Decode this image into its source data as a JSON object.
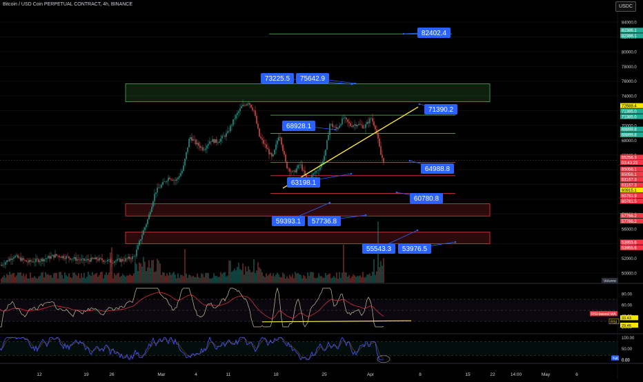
{
  "header": {
    "title": "Bitcoin / USD Coin PERPETUAL CONTRACT, 4h, BINANCE",
    "currency": "USDC"
  },
  "chart_data": {
    "type": "candlestick",
    "timeframe": "4h",
    "x_ticks": [
      "12",
      "19",
      "26",
      "Mar",
      "4",
      "11",
      "18",
      "25",
      "Apr",
      "8",
      "15",
      "22",
      "14:00",
      "May",
      "6"
    ],
    "y_ticks": [
      50000,
      52000,
      54000,
      56000,
      58000,
      60000,
      62000,
      64000,
      66000,
      68000,
      70000,
      72000,
      74000,
      76000,
      78000,
      80000,
      82000,
      84000
    ],
    "ylim": [
      48700,
      85500
    ],
    "price_callouts": [
      {
        "label": "82402.4",
        "price": 82402.4
      },
      {
        "label": "73225.5",
        "price": 75200
      },
      {
        "label": "75642.9",
        "price": 75642.9
      },
      {
        "label": "71390.2",
        "price": 71390.2
      },
      {
        "label": "68928.1",
        "price": 68928.1
      },
      {
        "label": "64988.8",
        "price": 64988.8
      },
      {
        "label": "63198.1",
        "price": 63198.1
      },
      {
        "label": "60780.8",
        "price": 60780.8
      },
      {
        "label": "59393.1",
        "price": 59393.1
      },
      {
        "label": "57736.8",
        "price": 57736.8
      },
      {
        "label": "55543.3",
        "price": 55543.3
      },
      {
        "label": "53976.5",
        "price": 53976.5
      }
    ],
    "horizontal_levels": [
      {
        "price": 82402.4,
        "color": "#4caf50"
      },
      {
        "price": 71390.2,
        "color": "#4caf50"
      },
      {
        "price": 68928.1,
        "color": "#4caf50"
      },
      {
        "price": 64988.8,
        "color": "#f23645"
      },
      {
        "price": 63198.1,
        "color": "#f23645"
      },
      {
        "price": 60780.8,
        "color": "#f23645"
      }
    ],
    "zones": [
      {
        "top": 75642.9,
        "bottom": 73225.5,
        "color": "#4caf50"
      },
      {
        "top": 59393.1,
        "bottom": 57736.8,
        "color": "#f23645"
      },
      {
        "top": 55543.3,
        "bottom": 53976.5,
        "color": "#f23645"
      }
    ],
    "axis_tags": [
      {
        "label": "82386.1",
        "price": 82900,
        "color": "#22ab94"
      },
      {
        "label": "82386.1",
        "price": 82150,
        "color": "#22ab94"
      },
      {
        "label": "72688.4",
        "price": 72688.4,
        "color": "#f7e600"
      },
      {
        "label": "71385.0",
        "price": 71950,
        "color": "#22ab94"
      },
      {
        "label": "71385.0",
        "price": 71200,
        "color": "#22ab94"
      },
      {
        "label": "68899.8",
        "price": 69500,
        "color": "#22ab94"
      },
      {
        "label": "68899.8",
        "price": 68750,
        "color": "#22ab94"
      },
      {
        "label": "65256.3",
        "price": 65700,
        "color": "#f23645"
      },
      {
        "label": "03:43:23",
        "price": 65000,
        "color": "#f23645"
      },
      {
        "label": "65056.1",
        "price": 64100,
        "color": "#f23645"
      },
      {
        "label": "65056.1",
        "price": 63400,
        "color": "#f23645"
      },
      {
        "label": "63167.3",
        "price": 62700,
        "color": "#f23645"
      },
      {
        "label": "63167.3",
        "price": 61950,
        "color": "#f23645"
      },
      {
        "label": "60915.1",
        "price": 61250,
        "color": "#f7e600"
      },
      {
        "label": "60781.9",
        "price": 60500,
        "color": "#f23645"
      },
      {
        "label": "60781.5",
        "price": 59750,
        "color": "#f23645"
      },
      {
        "label": "57766.2",
        "price": 57800,
        "color": "#f23645"
      },
      {
        "label": "57766.2",
        "price": 57050,
        "color": "#f23645"
      },
      {
        "label": "53955.6",
        "price": 54200,
        "color": "#f23645"
      },
      {
        "label": "53955.6",
        "price": 53450,
        "color": "#f23645"
      }
    ],
    "volume_label": "Volume",
    "rsi_panel": {
      "ticks": [
        80.0,
        60.0,
        40.0,
        20.0
      ],
      "ylim": [
        10,
        95
      ],
      "labels": [
        "RSI-based MA",
        "33.43",
        "RSI",
        "29.46"
      ]
    },
    "stoch_panel": {
      "ticks": [
        100.0,
        50.0,
        0.0
      ],
      "ylim": [
        -10,
        110
      ],
      "labels": [
        "%K",
        "0.00"
      ]
    }
  }
}
